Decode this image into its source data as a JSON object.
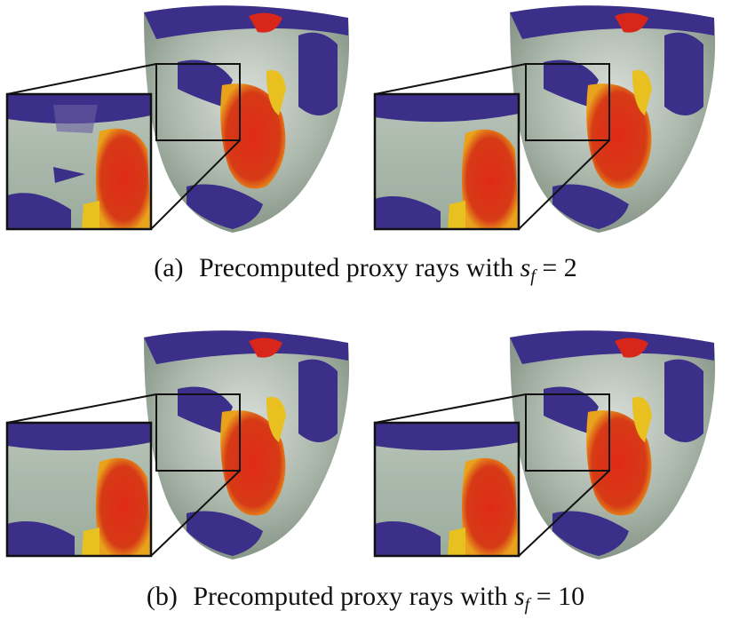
{
  "figure": {
    "panels": [
      {
        "id": "a",
        "label": "(a)",
        "caption_text": "Precomputed proxy rays with",
        "math_var": "s",
        "math_sub": "f",
        "math_value": "= 2"
      },
      {
        "id": "b",
        "label": "(b)",
        "caption_text": "Precomputed proxy rays with",
        "math_var": "s",
        "math_sub": "f",
        "math_value": "= 10"
      }
    ],
    "colors": {
      "tissue": "#8fa090",
      "tissue_light": "#c8d0c8",
      "region_dark": "#3b2f8a",
      "region_hot": "#d8261a",
      "region_warm": "#e8c020",
      "outline": "#111111"
    }
  }
}
